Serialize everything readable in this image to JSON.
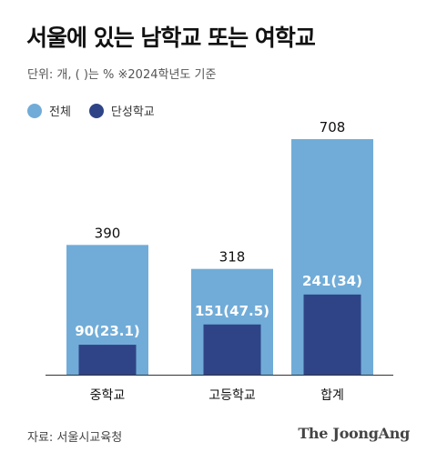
{
  "title": "서울에 있는 남학교 또는 여학교",
  "subtitle": "단위: 개, (  )는 %   ※2024학년도 기준",
  "source": "자료: 서울시교육청",
  "logo": "The JoongAng",
  "colors": {
    "total": "#71acd8",
    "single": "#2f4486",
    "axis": "#333333"
  },
  "chart_data": {
    "type": "bar",
    "categories": [
      "중학교",
      "고등학교",
      "합계"
    ],
    "series": [
      {
        "name": "전체",
        "values": [
          390,
          318,
          708
        ],
        "labels": [
          "390",
          "318",
          "708"
        ]
      },
      {
        "name": "단성학교",
        "values": [
          90,
          151,
          241
        ],
        "labels": [
          "90(23.1)",
          "151(47.5)",
          "241(34)"
        ]
      }
    ],
    "ylim": [
      0,
      708
    ],
    "grid": false,
    "legend": "top-left"
  }
}
